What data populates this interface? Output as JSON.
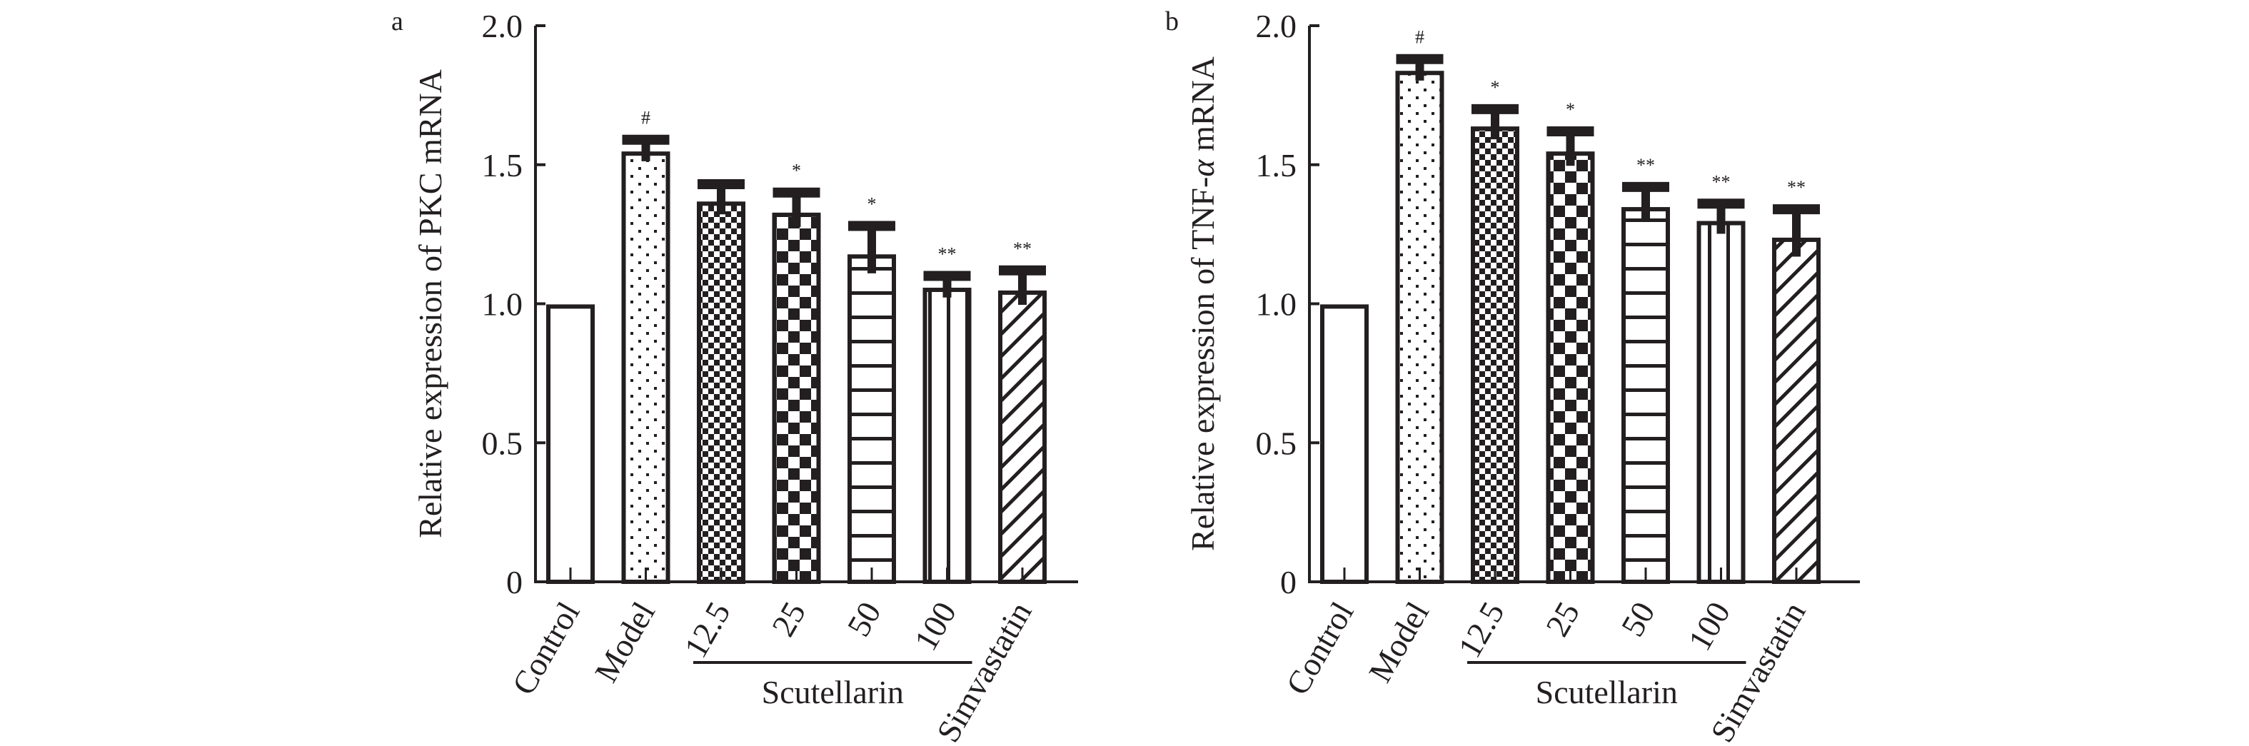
{
  "chart_data": [
    {
      "type": "bar",
      "panel_label": "a",
      "title": "",
      "xlabel": "",
      "ylabel": "Relative expression of PKC mRNA",
      "ylim": [
        0,
        2.0
      ],
      "yticks": [
        "0",
        "0.5",
        "1.0",
        "1.5",
        "2.0"
      ],
      "ytick_values": [
        0,
        0.5,
        1.0,
        1.5,
        2.0
      ],
      "categories": [
        "Control",
        "Model",
        "12.5",
        "25",
        "50",
        "100",
        "Simvastatin"
      ],
      "values": [
        0.99,
        1.54,
        1.36,
        1.32,
        1.17,
        1.05,
        1.04
      ],
      "errors": [
        0,
        0.05,
        0.07,
        0.08,
        0.11,
        0.05,
        0.08
      ],
      "significance": [
        "",
        "#",
        "",
        "*",
        "*",
        "**",
        "**"
      ],
      "patterns": [
        "empty",
        "dots",
        "fine-check",
        "coarse-check",
        "horizontal",
        "vertical",
        "diagonal"
      ],
      "group_label": "Scutellarin",
      "group_span": [
        "12.5",
        "100"
      ],
      "grid": false
    },
    {
      "type": "bar",
      "panel_label": "b",
      "title": "",
      "xlabel": "",
      "ylabel": "Relative expression of TNF-α mRNA",
      "ylabel_parts": [
        "Relative expression of TNF-",
        "α",
        " mRNA"
      ],
      "ylim": [
        0,
        2.0
      ],
      "yticks": [
        "0",
        "0.5",
        "1.0",
        "1.5",
        "2.0"
      ],
      "ytick_values": [
        0,
        0.5,
        1.0,
        1.5,
        2.0
      ],
      "categories": [
        "Control",
        "Model",
        "12.5",
        "25",
        "50",
        "100",
        "Simvastatin"
      ],
      "values": [
        0.99,
        1.83,
        1.63,
        1.54,
        1.34,
        1.29,
        1.23
      ],
      "errors": [
        0,
        0.05,
        0.07,
        0.08,
        0.08,
        0.07,
        0.11
      ],
      "significance": [
        "",
        "#",
        "*",
        "*",
        "**",
        "**",
        "**"
      ],
      "patterns": [
        "empty",
        "dots",
        "fine-check",
        "coarse-check",
        "horizontal",
        "vertical",
        "diagonal"
      ],
      "group_label": "Scutellarin",
      "group_span": [
        "12.5",
        "100"
      ],
      "grid": false
    }
  ],
  "colors": {
    "ink": "#231f20",
    "background": "#ffffff"
  }
}
